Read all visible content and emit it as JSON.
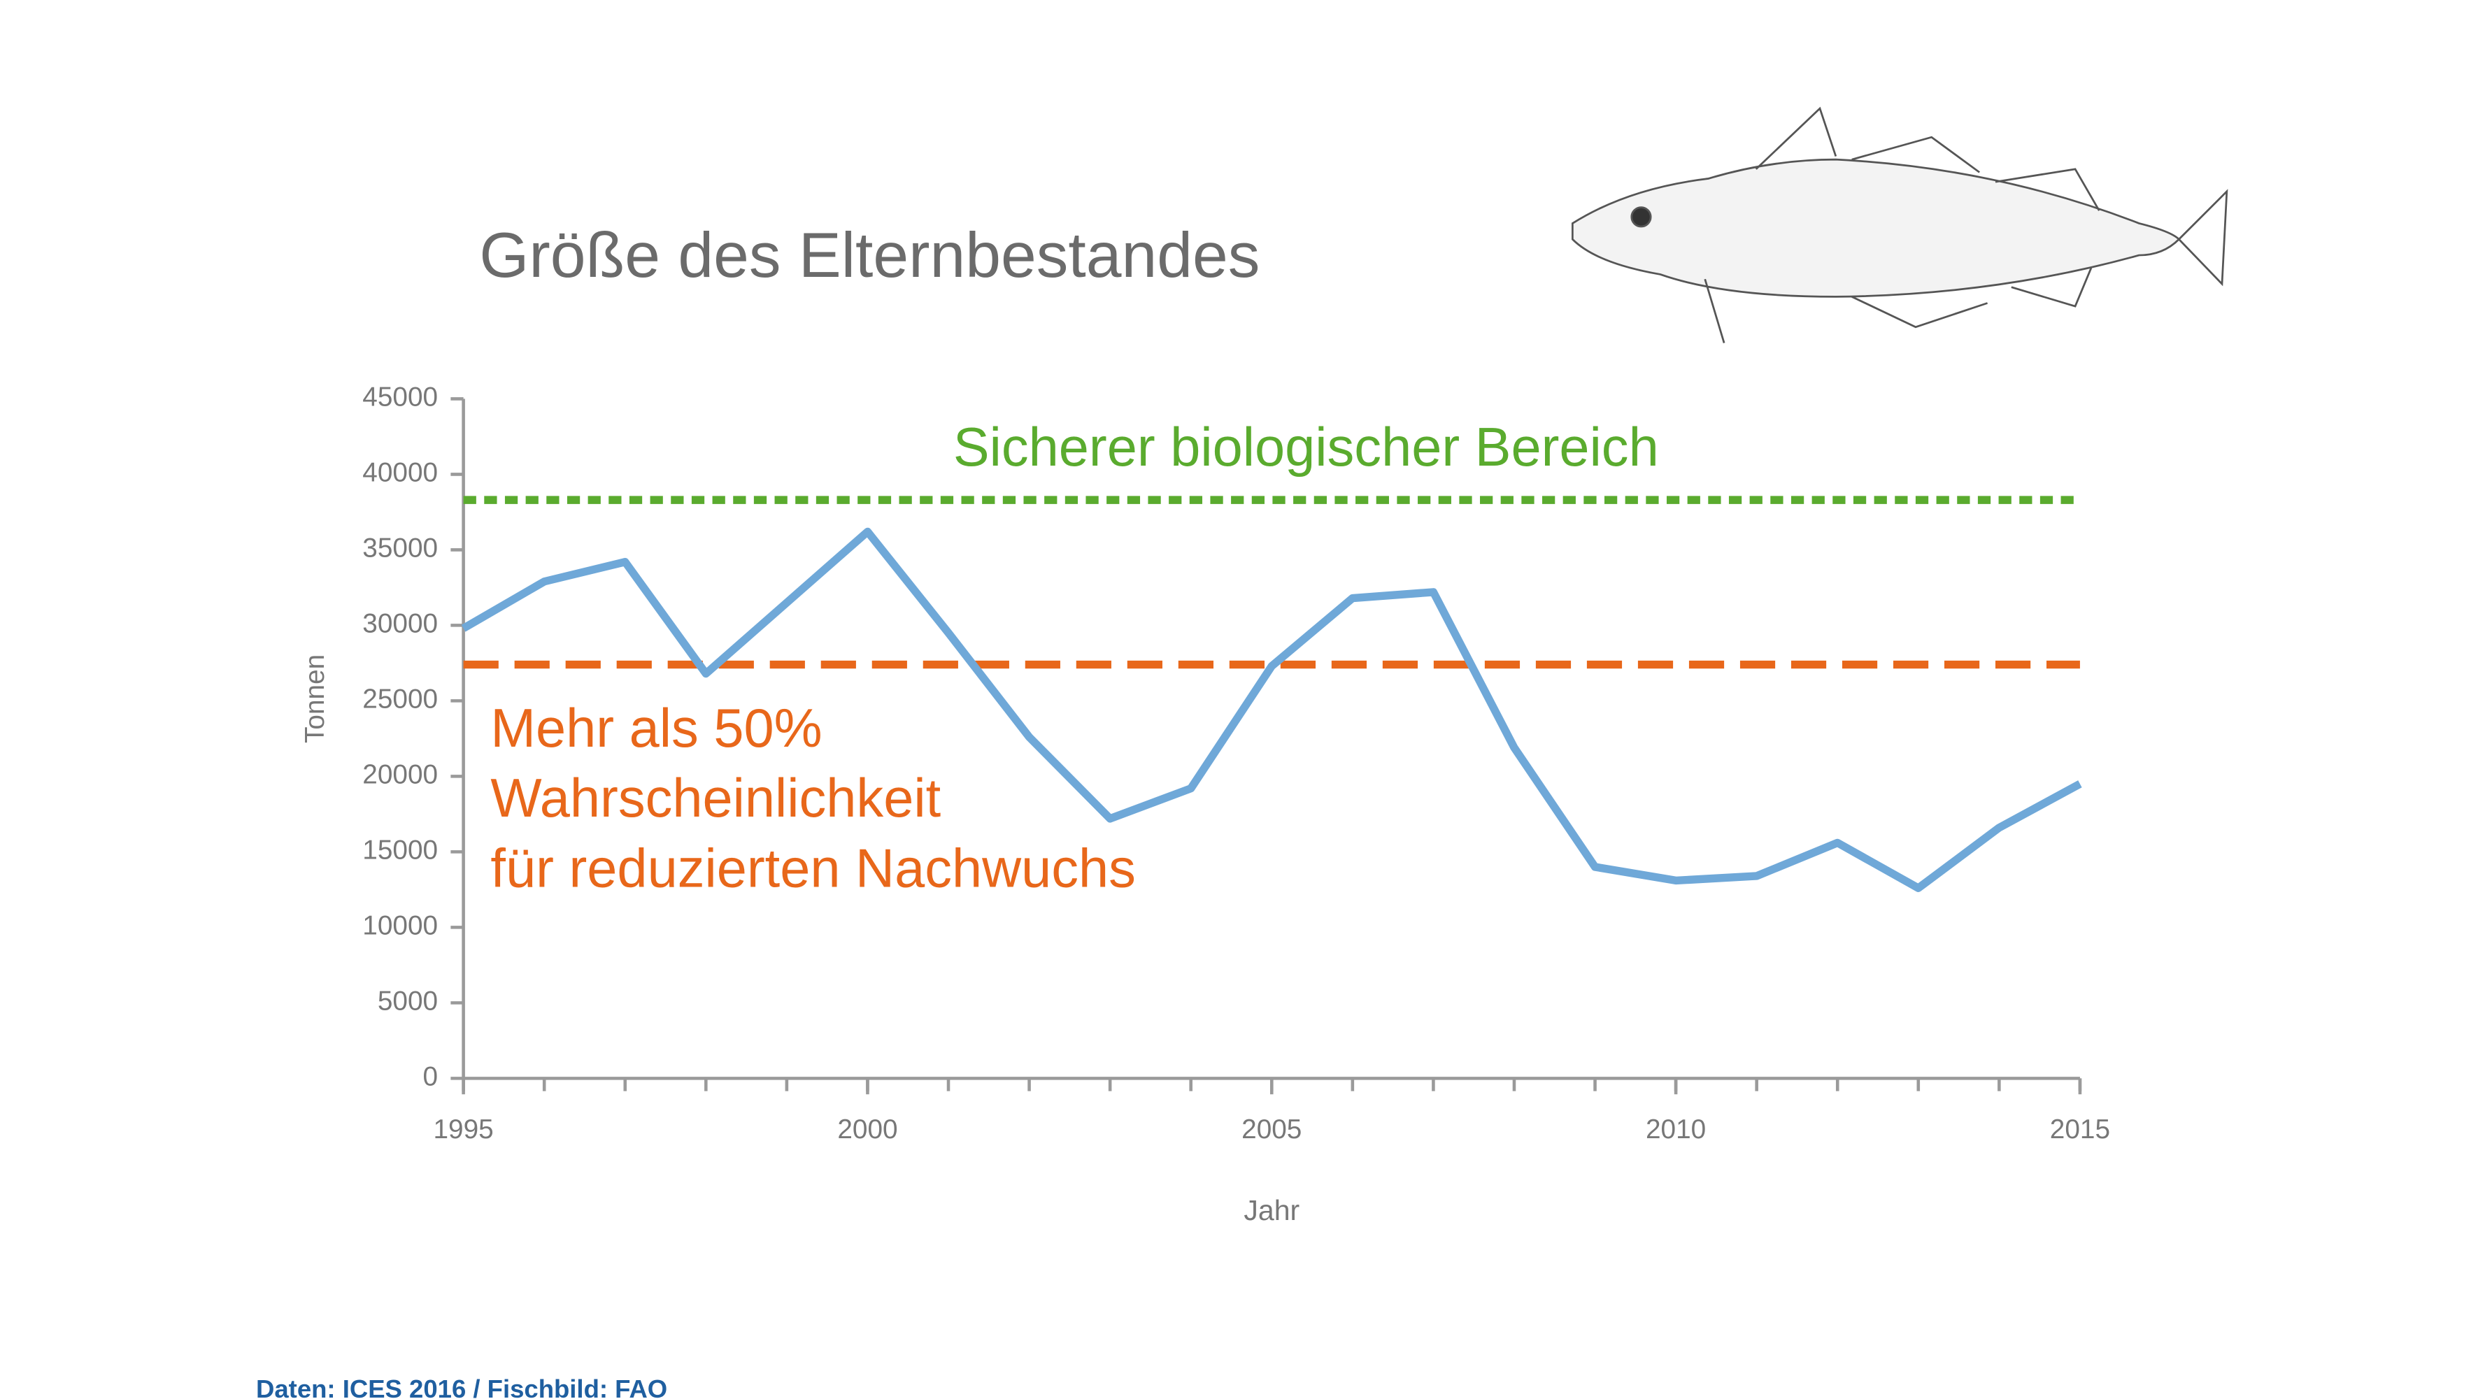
{
  "chart_data": {
    "type": "line",
    "title": "Größe des Elternbestandes",
    "x_label": "Jahr",
    "y_label": "Tonnen",
    "source": "Daten: ICES 2016 / Fischbild: FAO",
    "x": [
      1995,
      1996,
      1997,
      1998,
      1999,
      2000,
      2001,
      2002,
      2003,
      2004,
      2005,
      2006,
      2007,
      2008,
      2009,
      2010,
      2011,
      2012,
      2013,
      2014,
      2015
    ],
    "series": [
      {
        "color": "#6fa8d8",
        "values": [
          29800,
          32900,
          34200,
          26800,
          31500,
          36200,
          29500,
          22600,
          17200,
          19200,
          27300,
          31800,
          32200,
          21900,
          14000,
          13100,
          13400,
          15600,
          12600,
          16600,
          19500
        ]
      }
    ],
    "xlim": [
      1995,
      2015
    ],
    "xticks": [
      1995,
      2000,
      2005,
      2010,
      2015
    ],
    "ylim": [
      0,
      45000
    ],
    "yticks": [
      0,
      5000,
      10000,
      15000,
      20000,
      25000,
      30000,
      35000,
      40000,
      45000
    ],
    "reference_lines": [
      {
        "value": 38300,
        "color": "#5aab2e",
        "style": "dotted",
        "label": [
          "Sicherer biologischer Bereich"
        ]
      },
      {
        "value": 27400,
        "color": "#e8671a",
        "style": "dashed",
        "label": [
          "Mehr als 50%",
          "Wahrscheinlichkeit",
          "für reduzierten Nachwuchs"
        ]
      }
    ]
  }
}
